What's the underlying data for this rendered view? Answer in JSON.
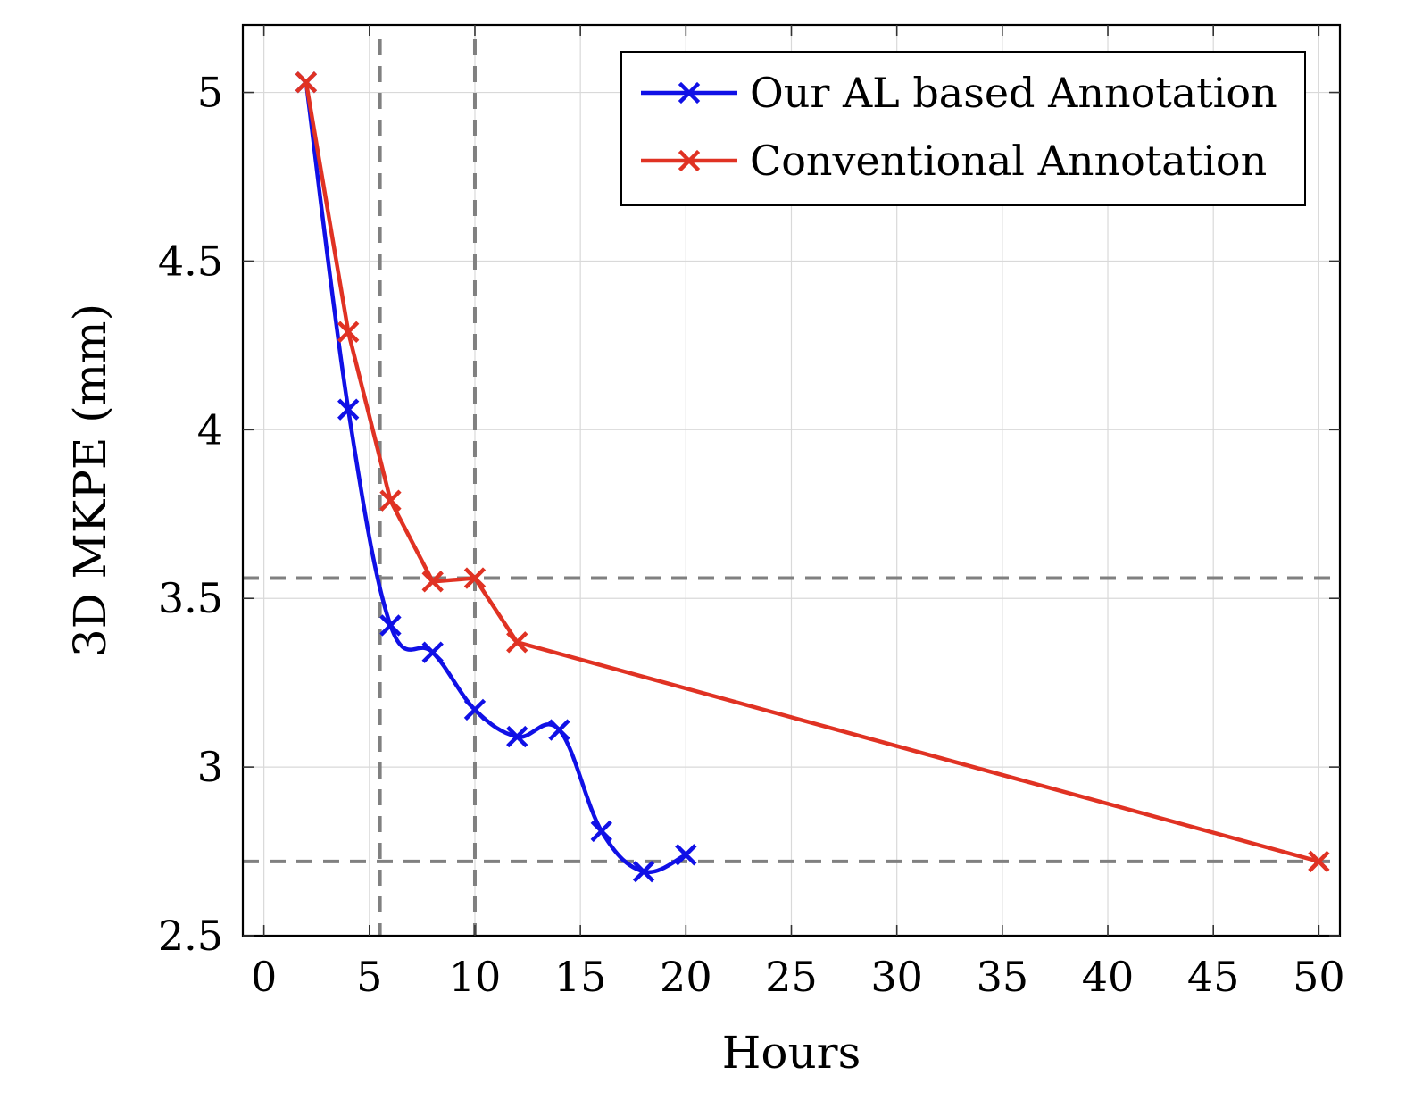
{
  "chart_data": {
    "type": "line",
    "title": "",
    "xlabel": "Hours",
    "ylabel": "3D MKPE (mm)",
    "xlim": [
      -1,
      51
    ],
    "ylim": [
      2.5,
      5.2
    ],
    "xticks": [
      0,
      5,
      10,
      15,
      20,
      25,
      30,
      35,
      40,
      45,
      50
    ],
    "yticks": [
      2.5,
      3,
      3.5,
      4,
      4.5,
      5
    ],
    "ytick_labels": [
      "2.5",
      "3",
      "3.5",
      "4",
      "4.5",
      "5"
    ],
    "grid": true,
    "legend_position": "top-right",
    "series": [
      {
        "name": "Our AL based Annotation",
        "color": "#1010e6",
        "marker": "x",
        "smooth": true,
        "x": [
          2,
          4,
          6,
          8,
          10,
          12,
          14,
          16,
          18,
          20
        ],
        "y": [
          5.03,
          4.06,
          3.42,
          3.34,
          3.17,
          3.09,
          3.11,
          2.81,
          2.69,
          2.74
        ]
      },
      {
        "name": "Conventional Annotation",
        "color": "#e03223",
        "marker": "x",
        "smooth": false,
        "x": [
          2,
          4,
          6,
          8,
          10,
          12,
          50
        ],
        "y": [
          5.03,
          4.29,
          3.79,
          3.55,
          3.56,
          3.37,
          2.72
        ]
      }
    ],
    "reference_lines": {
      "color": "#808080",
      "vertical_x": [
        5.5,
        10
      ],
      "horizontal_y": [
        3.56,
        2.72
      ]
    }
  }
}
